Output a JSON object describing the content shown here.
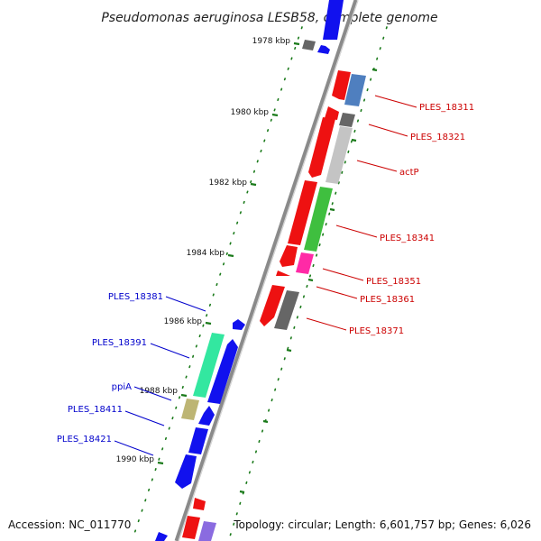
{
  "header": {
    "title": "Pseudomonas aeruginosa LESB58, complete genome"
  },
  "footer": {
    "accession": "Accession: NC_011770",
    "summary": "Topology: circular; Length: 6,601,757 bp; Genes: 6,026"
  },
  "ticks": [
    "1978 kbp",
    "1980 kbp",
    "1982 kbp",
    "1984 kbp",
    "1986 kbp",
    "1988 kbp",
    "1990 kbp"
  ],
  "right_labels": [
    "PLES_18311",
    "PLES_18321",
    "actP",
    "PLES_18341",
    "PLES_18351",
    "PLES_18361",
    "PLES_18371"
  ],
  "left_labels": [
    "PLES_18381",
    "PLES_18391",
    "ppiA",
    "PLES_18411",
    "PLES_18421"
  ],
  "colors": {
    "red": "#ee1111",
    "blue": "#1111ee",
    "gray_dark": "#666666",
    "gray_light": "#c4c4c4",
    "steel": "#4f7fbf",
    "green": "#3fbf3f",
    "magenta": "#ff2aa6",
    "mint": "#33e7a0",
    "khaki": "#bdb574",
    "purple": "#8a6be0",
    "label_red": "#cc0000",
    "label_blue": "#0000cc",
    "tick_green": "#1a7a1a",
    "backbone": "#8a8a8a"
  }
}
